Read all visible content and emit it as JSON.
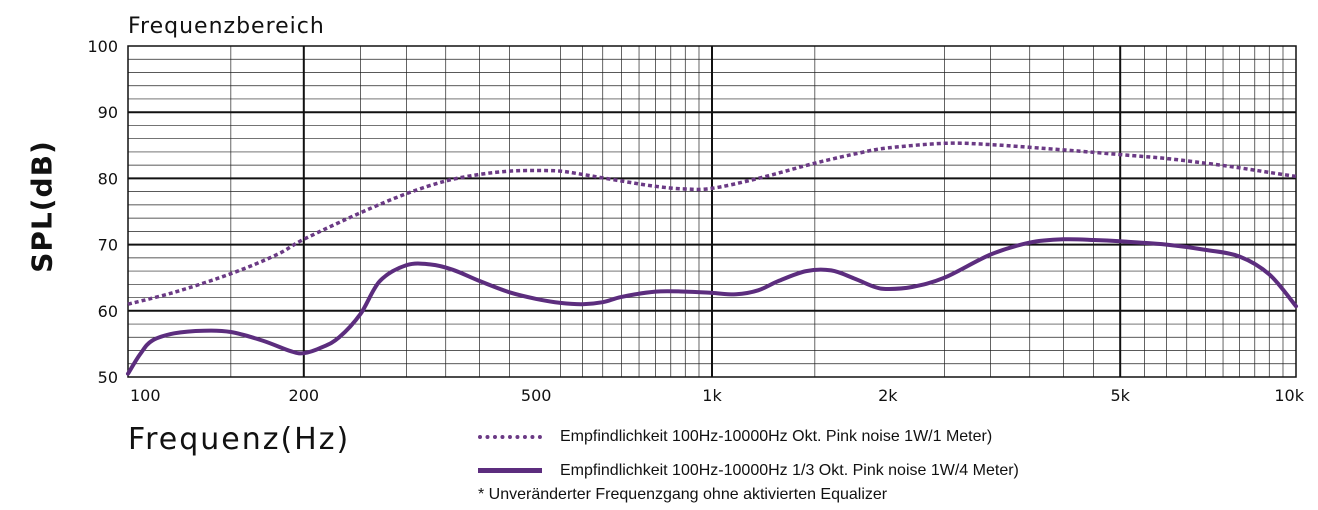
{
  "chart_data": {
    "type": "line",
    "title": "Frequenzbereich",
    "xlabel": "Frequenz(Hz)",
    "ylabel": "SPL(dB)",
    "xscale": "log",
    "xlim": [
      100,
      10000
    ],
    "ylim": [
      50,
      100
    ],
    "grid": true,
    "legend_position": "bottom",
    "x_tick_values": [
      100,
      200,
      500,
      1000,
      2000,
      5000,
      10000
    ],
    "x_tick_labels": [
      "100",
      "200",
      "500",
      "1k",
      "2k",
      "5k",
      "10k"
    ],
    "y_tick_values": [
      50,
      60,
      70,
      80,
      90,
      100
    ],
    "y_tick_labels": [
      "50",
      "60",
      "70",
      "80",
      "90",
      "100"
    ],
    "series": [
      {
        "name": "Empfindlichkeit 100Hz-10000Hz Okt. Pink noise 1W/1 Meter)",
        "style": "dotted",
        "color": "#6b3a85",
        "x": [
          100,
          120,
          150,
          180,
          200,
          250,
          300,
          350,
          400,
          450,
          500,
          550,
          600,
          700,
          800,
          900,
          1000,
          1200,
          1500,
          1800,
          2000,
          2500,
          3000,
          4000,
          5000,
          6000,
          7000,
          8000,
          9000,
          10000
        ],
        "y": [
          61,
          62.8,
          65.6,
          68.5,
          70.8,
          74.8,
          77.7,
          79.6,
          80.6,
          81.1,
          81.2,
          81.1,
          80.6,
          79.6,
          78.8,
          78.4,
          78.5,
          80,
          82.3,
          83.9,
          84.6,
          85.3,
          85.1,
          84.3,
          83.6,
          83,
          82.3,
          81.6,
          80.9,
          80.3
        ]
      },
      {
        "name": "Empfindlichkeit 100Hz-10000Hz 1/3 Okt. Pink noise 1W/4 Meter)",
        "style": "solid",
        "color": "#5c2d7e",
        "x": [
          100,
          105,
          110,
          120,
          135,
          150,
          170,
          190,
          200,
          215,
          230,
          250,
          270,
          300,
          330,
          360,
          400,
          450,
          500,
          550,
          600,
          650,
          700,
          800,
          900,
          1000,
          1100,
          1200,
          1300,
          1450,
          1600,
          1750,
          1900,
          2000,
          2200,
          2500,
          3000,
          3500,
          4000,
          4500,
          5000,
          6000,
          7000,
          8000,
          9000,
          10000
        ],
        "y": [
          50.5,
          53.5,
          55.5,
          56.6,
          57,
          56.8,
          55.5,
          53.9,
          53.6,
          54.5,
          56,
          59.5,
          64.5,
          66.9,
          67,
          66.2,
          64.5,
          62.8,
          61.8,
          61.2,
          61,
          61.3,
          62.1,
          62.9,
          62.9,
          62.7,
          62.5,
          63.1,
          64.5,
          66,
          66.1,
          64.9,
          63.6,
          63.3,
          63.6,
          65,
          68.5,
          70.3,
          70.8,
          70.7,
          70.5,
          70,
          69.2,
          68.2,
          65.5,
          60.7
        ]
      }
    ],
    "footnote": "* Unveränderter Frequenzgang ohne aktivierten Equalizer"
  }
}
